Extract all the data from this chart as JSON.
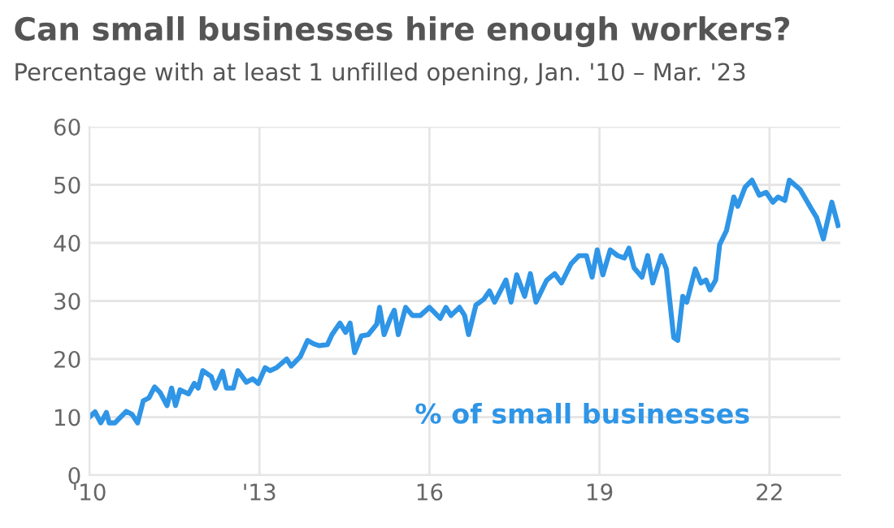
{
  "chart_data": {
    "type": "line",
    "title": "Can small businesses hire enough workers?",
    "subtitle": "Percentage with at least 1 unfilled opening, Jan. '10 – Mar. '23",
    "series": [
      {
        "name": "% of small businesses",
        "color": "#2f95e6",
        "x": [
          2010.0,
          2010.1,
          2010.2,
          2010.3,
          2010.35,
          2010.45,
          2010.65,
          2010.75,
          2010.85,
          2010.95,
          2011.05,
          2011.15,
          2011.25,
          2011.37,
          2011.45,
          2011.52,
          2011.6,
          2011.75,
          2011.85,
          2011.92,
          2012.0,
          2012.15,
          2012.22,
          2012.35,
          2012.42,
          2012.54,
          2012.62,
          2012.77,
          2012.88,
          2012.98,
          2013.1,
          2013.19,
          2013.3,
          2013.48,
          2013.56,
          2013.72,
          2013.85,
          2013.96,
          2014.06,
          2014.2,
          2014.28,
          2014.42,
          2014.52,
          2014.6,
          2014.68,
          2014.8,
          2014.92,
          2015.07,
          2015.12,
          2015.2,
          2015.31,
          2015.38,
          2015.45,
          2015.58,
          2015.7,
          2015.84,
          2016.0,
          2016.19,
          2016.29,
          2016.38,
          2016.53,
          2016.62,
          2016.69,
          2016.82,
          2016.96,
          2017.06,
          2017.15,
          2017.35,
          2017.44,
          2017.54,
          2017.68,
          2017.78,
          2017.88,
          2018.07,
          2018.21,
          2018.33,
          2018.5,
          2018.64,
          2018.77,
          2018.87,
          2018.96,
          2019.06,
          2019.19,
          2019.32,
          2019.44,
          2019.52,
          2019.61,
          2019.75,
          2019.85,
          2019.94,
          2020.09,
          2020.18,
          2020.31,
          2020.38,
          2020.47,
          2020.54,
          2020.69,
          2020.79,
          2020.88,
          2020.95,
          2021.05,
          2021.12,
          2021.24,
          2021.37,
          2021.44,
          2021.57,
          2021.69,
          2021.82,
          2021.94,
          2022.06,
          2022.15,
          2022.27,
          2022.35,
          2022.54,
          2022.73,
          2022.83,
          2022.95,
          2023.1,
          2023.21
        ],
        "values": [
          10.0,
          10.9,
          9.0,
          10.8,
          9.0,
          9.0,
          11.0,
          10.5,
          9.0,
          12.8,
          13.3,
          15.2,
          14.2,
          12.0,
          15.0,
          12.0,
          14.7,
          14.0,
          15.8,
          15.0,
          18.0,
          17.0,
          15.0,
          17.9,
          15.0,
          15.0,
          18.0,
          16.0,
          16.6,
          15.8,
          18.5,
          18.0,
          18.5,
          20.0,
          18.8,
          20.4,
          23.2,
          22.6,
          22.3,
          22.5,
          24.2,
          26.2,
          24.6,
          26.2,
          21.1,
          24.0,
          24.2,
          26.0,
          28.9,
          24.2,
          27.0,
          28.4,
          24.2,
          28.9,
          27.5,
          27.5,
          28.9,
          27.0,
          28.9,
          27.5,
          28.9,
          27.5,
          24.2,
          29.3,
          30.3,
          31.7,
          29.8,
          33.6,
          29.8,
          34.5,
          30.8,
          34.7,
          29.8,
          33.6,
          34.7,
          33.1,
          36.4,
          37.8,
          37.8,
          34.1,
          38.8,
          34.5,
          38.8,
          37.8,
          37.4,
          39.1,
          35.7,
          34.1,
          37.8,
          33.1,
          37.8,
          35.5,
          23.7,
          23.2,
          30.8,
          29.8,
          35.5,
          33.1,
          33.6,
          31.9,
          33.6,
          39.7,
          42.1,
          47.9,
          46.3,
          49.6,
          50.8,
          48.2,
          48.7,
          47.0,
          47.9,
          47.3,
          50.8,
          49.2,
          46.0,
          44.4,
          40.7,
          47.0,
          43.0
        ]
      }
    ],
    "xlim": [
      2010,
      2023.25
    ],
    "ylim": [
      0,
      60
    ],
    "xticks": [
      {
        "value": 2010,
        "label": "'10"
      },
      {
        "value": 2013,
        "label": "'13"
      },
      {
        "value": 2016,
        "label": "16"
      },
      {
        "value": 2019,
        "label": "19"
      },
      {
        "value": 2022,
        "label": "22"
      }
    ],
    "yticks": [
      0,
      10,
      20,
      30,
      40,
      50,
      60
    ],
    "grid": true,
    "line_style": "solid",
    "marker": "none"
  }
}
